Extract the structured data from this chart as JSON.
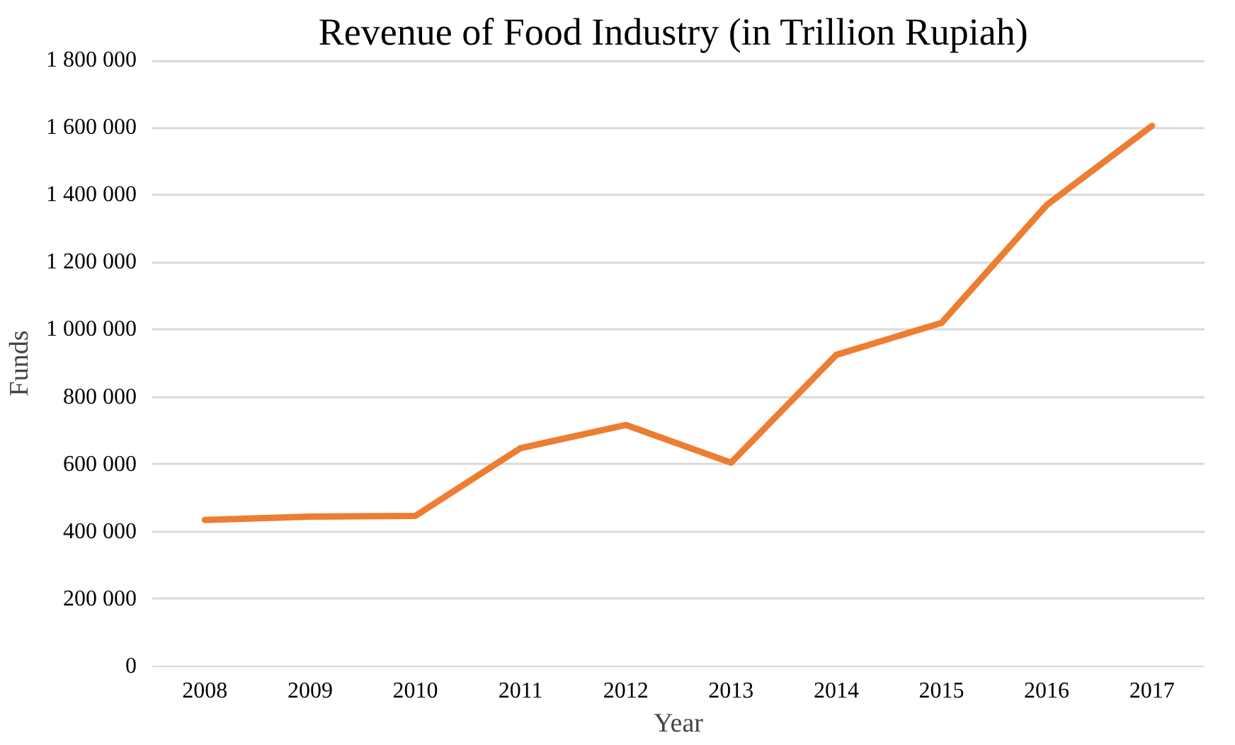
{
  "chart_data": {
    "type": "line",
    "title": "Revenue of Food Industry  (in Trillion Rupiah)",
    "xlabel": "Year",
    "ylabel": "Funds",
    "categories": [
      "2008",
      "2009",
      "2010",
      "2011",
      "2012",
      "2013",
      "2014",
      "2015",
      "2016",
      "2017"
    ],
    "series": [
      {
        "color": "#ed7d31",
        "values": [
          435000,
          445000,
          447000,
          648000,
          717000,
          605000,
          925000,
          1020000,
          1370000,
          1605000
        ]
      }
    ],
    "ylim": [
      0,
      1800000
    ],
    "yticks": [
      {
        "value": 0,
        "label": "0"
      },
      {
        "value": 200000,
        "label": "200 000"
      },
      {
        "value": 400000,
        "label": "400 000"
      },
      {
        "value": 600000,
        "label": "600 000"
      },
      {
        "value": 800000,
        "label": "800 000"
      },
      {
        "value": 1000000,
        "label": "1 000 000"
      },
      {
        "value": 1200000,
        "label": "1 200 000"
      },
      {
        "value": 1400000,
        "label": "1 400 000"
      },
      {
        "value": 1600000,
        "label": "1 600 000"
      },
      {
        "value": 1800000,
        "label": "1 800 000"
      }
    ],
    "grid": "y",
    "marker": "none",
    "line_style": "solid"
  }
}
